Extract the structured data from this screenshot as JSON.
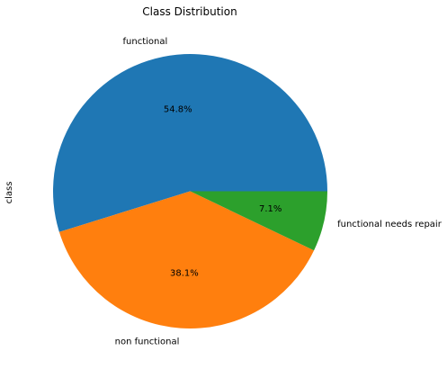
{
  "chart_data": {
    "type": "pie",
    "title": "Class Distribution",
    "ylabel": "class",
    "slices": [
      {
        "label": "functional",
        "value": 54.8,
        "pct_text": "54.8%",
        "color": "#1f77b4"
      },
      {
        "label": "non functional",
        "value": 38.1,
        "pct_text": "38.1%",
        "color": "#ff7f0e"
      },
      {
        "label": "functional needs repair",
        "value": 7.1,
        "pct_text": "7.1%",
        "color": "#2ca02c"
      }
    ],
    "start_angle_deg": 0,
    "direction": "counterclockwise"
  }
}
